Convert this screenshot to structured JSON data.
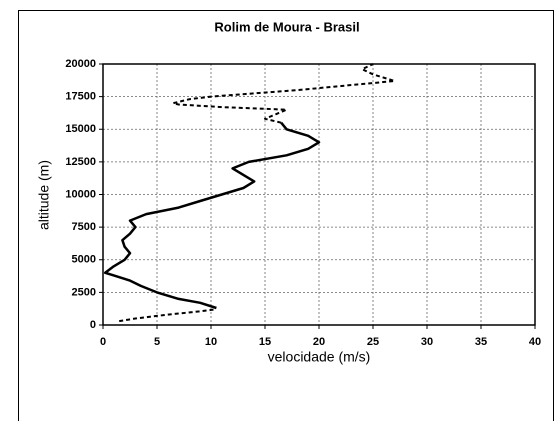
{
  "chart_data": {
    "type": "line",
    "title": "Rolim de Moura - Brasil",
    "x_label": "velocidade (m/s)",
    "y_label": "altitude (m)",
    "xlim": [
      0,
      40
    ],
    "xticks": [
      0,
      5,
      10,
      15,
      20,
      25,
      30,
      35,
      40
    ],
    "ylim": [
      0,
      20000
    ],
    "yticks": [
      0,
      2500,
      5000,
      7500,
      10000,
      12500,
      15000,
      17500,
      20000
    ],
    "grid": true,
    "series": [
      {
        "color": "#000000",
        "style": "dashed",
        "x": [
          1.5,
          3,
          6,
          8.5,
          10.5
        ],
        "values": [
          300,
          500,
          800,
          1000,
          1200
        ]
      },
      {
        "color": "#000000",
        "style": "solid",
        "x": [
          10.5,
          9,
          7,
          5,
          3.5,
          2.5,
          1,
          0.2,
          1,
          2,
          2.5,
          2,
          1.8,
          2.5,
          3,
          2.5,
          4,
          7,
          9,
          11,
          13,
          14,
          13,
          12,
          13.5,
          17,
          19,
          20,
          19,
          17,
          16.5
        ],
        "values": [
          1300,
          1700,
          2000,
          2500,
          3000,
          3400,
          3800,
          4000,
          4500,
          5000,
          5500,
          6000,
          6500,
          7000,
          7500,
          8000,
          8500,
          9000,
          9500,
          10000,
          10500,
          11000,
          11500,
          12000,
          12500,
          13000,
          13500,
          14000,
          14500,
          15000,
          15500
        ]
      },
      {
        "color": "#000000",
        "style": "dashed",
        "x": [
          16.5,
          15,
          17,
          11,
          7,
          6.5,
          8,
          10,
          18,
          27,
          25,
          24,
          25
        ],
        "values": [
          15500,
          15800,
          16500,
          16700,
          16900,
          17000,
          17300,
          17500,
          18000,
          18700,
          19200,
          19600,
          20000
        ]
      }
    ]
  }
}
